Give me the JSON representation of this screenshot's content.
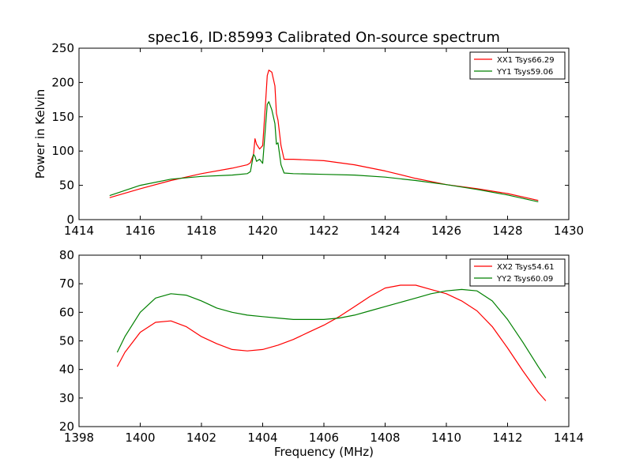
{
  "figure_title": "spec16, ID:85993 Calibrated On-source spectrum",
  "chart_data": [
    {
      "type": "line",
      "title": "spec16, ID:85993 Calibrated On-source spectrum",
      "xlabel": "",
      "ylabel": "Power in Kelvin",
      "xlim": [
        1414,
        1430
      ],
      "ylim": [
        0,
        250
      ],
      "xticks": [
        "1414",
        "1416",
        "1418",
        "1420",
        "1422",
        "1424",
        "1426",
        "1428",
        "1430"
      ],
      "yticks": [
        "0",
        "50",
        "100",
        "150",
        "200",
        "250"
      ],
      "legend": "top-right",
      "grid": false,
      "series": [
        {
          "name": "XX1 Tsys66.29",
          "color": "#ff0000",
          "x": [
            1415.0,
            1416.0,
            1417.0,
            1418.0,
            1419.0,
            1419.5,
            1419.6,
            1419.7,
            1419.75,
            1419.8,
            1419.9,
            1420.0,
            1420.1,
            1420.15,
            1420.2,
            1420.3,
            1420.4,
            1420.45,
            1420.5,
            1420.6,
            1420.7,
            1421.0,
            1422.0,
            1423.0,
            1424.0,
            1425.0,
            1426.0,
            1427.0,
            1428.0,
            1429.0
          ],
          "y": [
            32,
            45,
            57,
            67,
            75,
            80,
            83,
            95,
            118,
            110,
            103,
            108,
            175,
            210,
            218,
            215,
            195,
            155,
            145,
            108,
            88,
            88,
            86,
            80,
            71,
            60,
            51,
            45,
            38,
            28
          ]
        },
        {
          "name": "YY1 Tsys59.06",
          "color": "#008000",
          "x": [
            1415.0,
            1416.0,
            1417.0,
            1418.0,
            1419.0,
            1419.5,
            1419.6,
            1419.7,
            1419.75,
            1419.8,
            1419.9,
            1420.0,
            1420.1,
            1420.15,
            1420.2,
            1420.3,
            1420.4,
            1420.45,
            1420.5,
            1420.6,
            1420.7,
            1421.0,
            1422.0,
            1423.0,
            1424.0,
            1425.0,
            1426.0,
            1427.0,
            1428.0,
            1429.0
          ],
          "y": [
            35,
            50,
            59,
            63,
            65,
            67,
            70,
            95,
            92,
            85,
            88,
            82,
            140,
            168,
            172,
            160,
            140,
            110,
            112,
            80,
            68,
            67,
            66,
            65,
            62,
            57,
            51,
            44,
            36,
            26
          ]
        }
      ]
    },
    {
      "type": "line",
      "title": "",
      "xlabel": "Frequency (MHz)",
      "ylabel": "",
      "xlim": [
        1398,
        1414
      ],
      "ylim": [
        20,
        80
      ],
      "xticks": [
        "1398",
        "1400",
        "1402",
        "1404",
        "1406",
        "1408",
        "1410",
        "1412",
        "1414"
      ],
      "yticks": [
        "20",
        "30",
        "40",
        "50",
        "60",
        "70",
        "80"
      ],
      "legend": "top-right",
      "grid": false,
      "series": [
        {
          "name": "XX2 Tsys54.61",
          "color": "#ff0000",
          "x": [
            1399.25,
            1399.5,
            1400.0,
            1400.5,
            1401.0,
            1401.5,
            1402.0,
            1402.5,
            1403.0,
            1403.5,
            1404.0,
            1404.5,
            1405.0,
            1405.5,
            1406.0,
            1406.5,
            1407.0,
            1407.5,
            1408.0,
            1408.5,
            1409.0,
            1409.5,
            1410.0,
            1410.5,
            1411.0,
            1411.5,
            1412.0,
            1412.5,
            1413.0,
            1413.25
          ],
          "y": [
            41,
            46,
            53,
            56.5,
            57,
            55,
            51.5,
            49,
            47,
            46.5,
            47,
            48.5,
            50.5,
            53,
            55.5,
            58.5,
            62,
            65.5,
            68.5,
            69.5,
            69.5,
            68,
            66.5,
            64,
            60.5,
            55,
            47.5,
            39.5,
            32,
            29
          ]
        },
        {
          "name": "YY2 Tsys60.09",
          "color": "#008000",
          "x": [
            1399.25,
            1399.5,
            1400.0,
            1400.5,
            1401.0,
            1401.5,
            1402.0,
            1402.5,
            1403.0,
            1403.5,
            1404.0,
            1404.5,
            1405.0,
            1405.5,
            1406.0,
            1406.5,
            1407.0,
            1407.5,
            1408.0,
            1408.5,
            1409.0,
            1409.5,
            1410.0,
            1410.5,
            1411.0,
            1411.5,
            1412.0,
            1412.5,
            1413.0,
            1413.25
          ],
          "y": [
            46,
            51.5,
            60,
            65,
            66.5,
            66,
            64,
            61.5,
            60,
            59,
            58.5,
            58,
            57.5,
            57.5,
            57.5,
            58,
            59,
            60.5,
            62,
            63.5,
            65,
            66.5,
            67.5,
            68,
            67.5,
            64,
            57.5,
            49.5,
            41,
            37
          ]
        }
      ]
    }
  ]
}
